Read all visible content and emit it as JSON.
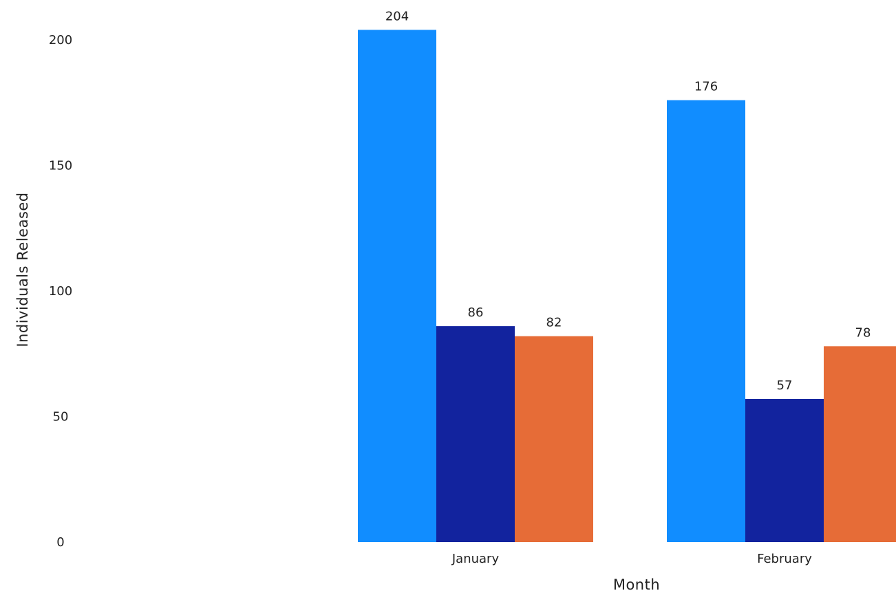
{
  "chart_data": {
    "type": "bar",
    "title": "",
    "xlabel": "Month",
    "ylabel": "Individuals Released",
    "categories": [
      "January",
      "February"
    ],
    "ylim": [
      0,
      210
    ],
    "yticks": [
      0,
      50,
      100,
      150,
      200
    ],
    "grid": false,
    "legend": "none",
    "series": [
      {
        "color": "#118DFF",
        "values": [
          204,
          176
        ]
      },
      {
        "color": "#12239E",
        "values": [
          86,
          57
        ]
      },
      {
        "color": "#E66C37",
        "values": [
          82,
          78
        ]
      }
    ]
  }
}
